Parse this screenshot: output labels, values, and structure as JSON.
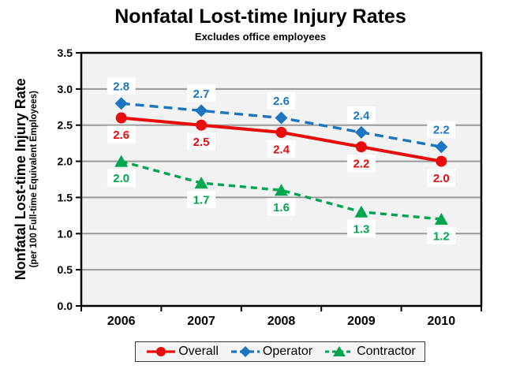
{
  "title": "Nonfatal Lost-time Injury Rates",
  "subtitle": "Excludes office employees",
  "y_axis": {
    "label": "Nonfatal Lost-time Injury Rate",
    "sublabel": "(per 100 Full-time Equivalent Employees)"
  },
  "chart_data": {
    "type": "line",
    "categories": [
      "2006",
      "2007",
      "2008",
      "2009",
      "2010"
    ],
    "series": [
      {
        "name": "Overall",
        "values": [
          2.6,
          2.5,
          2.4,
          2.2,
          2.0
        ],
        "color": "#e80c0c",
        "marker": "circle",
        "line_style": "solid",
        "label_position": "below"
      },
      {
        "name": "Operator",
        "values": [
          2.8,
          2.7,
          2.6,
          2.4,
          2.2
        ],
        "color": "#1b75c0",
        "marker": "diamond",
        "line_style": "dashed",
        "label_position": "above"
      },
      {
        "name": "Contractor",
        "values": [
          2.0,
          1.7,
          1.6,
          1.3,
          1.2
        ],
        "color": "#00a550",
        "marker": "triangle",
        "line_style": "dashed",
        "label_position": "below"
      }
    ],
    "ylim": [
      0,
      3.5
    ],
    "ytick_step": 0.5,
    "yticks": [
      "0.0",
      "0.5",
      "1.0",
      "1.5",
      "2.0",
      "2.5",
      "3.0",
      "3.5"
    ],
    "grid": "horizontal",
    "legend_position": "bottom",
    "plot_bg": "#f2f2f2",
    "grid_color": "#999999",
    "axis_color": "#000000",
    "label_box_bg": "#ffffff"
  }
}
